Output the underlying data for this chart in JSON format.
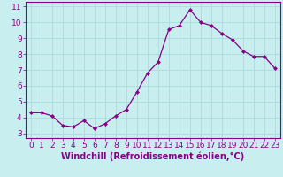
{
  "x": [
    0,
    1,
    2,
    3,
    4,
    5,
    6,
    7,
    8,
    9,
    10,
    11,
    12,
    13,
    14,
    15,
    16,
    17,
    18,
    19,
    20,
    21,
    22,
    23
  ],
  "y": [
    4.3,
    4.3,
    4.1,
    3.5,
    3.4,
    3.8,
    3.3,
    3.6,
    4.1,
    4.5,
    5.6,
    6.8,
    7.5,
    9.55,
    9.8,
    10.8,
    10.0,
    9.8,
    9.3,
    8.9,
    8.2,
    7.85,
    7.85,
    7.1
  ],
  "line_color": "#880088",
  "marker": "D",
  "marker_size": 2.0,
  "bg_color": "#c8eef0",
  "grid_color": "#aadddd",
  "xlim": [
    -0.5,
    23.5
  ],
  "ylim": [
    2.7,
    11.3
  ],
  "yticks": [
    3,
    4,
    5,
    6,
    7,
    8,
    9,
    10,
    11
  ],
  "xticks": [
    0,
    1,
    2,
    3,
    4,
    5,
    6,
    7,
    8,
    9,
    10,
    11,
    12,
    13,
    14,
    15,
    16,
    17,
    18,
    19,
    20,
    21,
    22,
    23
  ],
  "xlabel": "Windchill (Refroidissement éolien,°C)",
  "tick_color": "#880088",
  "label_color": "#880088",
  "spine_color": "#880088",
  "font_size": 6.5,
  "xlabel_fontsize": 7.0
}
